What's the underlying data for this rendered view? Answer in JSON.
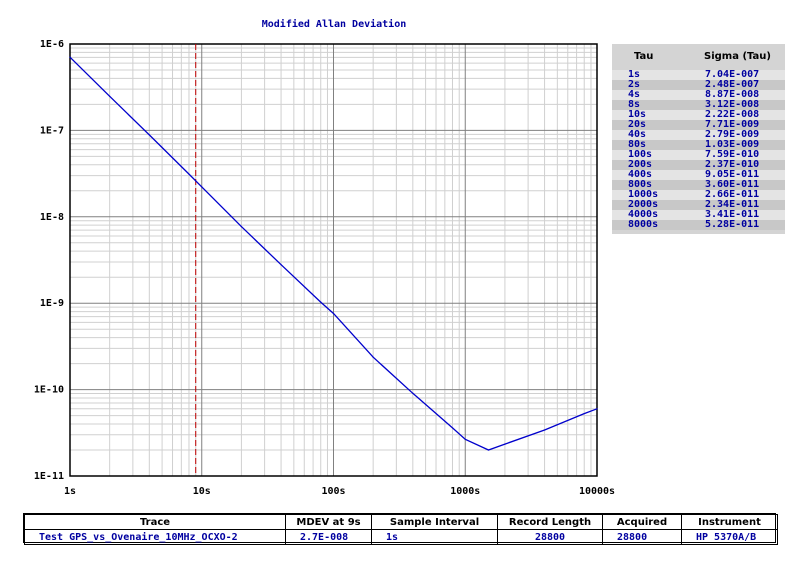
{
  "chart_data": {
    "type": "line",
    "title": "Modified Allan Deviation",
    "xscale": "log",
    "yscale": "log",
    "xlim": [
      1,
      10000
    ],
    "ylim": [
      1e-11,
      1e-06
    ],
    "x_tick_labels": [
      "1s",
      "10s",
      "100s",
      "1000s",
      "10000s"
    ],
    "y_tick_labels": [
      "1E-6",
      "1E-7",
      "1E-8",
      "1E-9",
      "1E-10",
      "1E-11"
    ],
    "grid": true,
    "marker_line": {
      "x": 9,
      "style": "dashed",
      "color": "#c00000"
    },
    "series": [
      {
        "color": "#0000cc",
        "x": [
          1,
          2,
          4,
          8,
          10,
          20,
          40,
          80,
          100,
          200,
          400,
          800,
          1000,
          1500,
          2000,
          4000,
          8000,
          10000
        ],
        "y": [
          7.04e-07,
          2.48e-07,
          8.87e-08,
          3.12e-08,
          2.22e-08,
          7.71e-09,
          2.79e-09,
          1.03e-09,
          7.59e-10,
          2.37e-10,
          9.05e-11,
          3.6e-11,
          2.66e-11,
          2e-11,
          2.34e-11,
          3.41e-11,
          5.28e-11,
          6e-11
        ]
      }
    ]
  },
  "table": {
    "header_tau": "Tau",
    "header_sigma": "Sigma (Tau)",
    "rows": [
      {
        "tau": "1s",
        "sigma": "7.04E-007"
      },
      {
        "tau": "2s",
        "sigma": "2.48E-007"
      },
      {
        "tau": "4s",
        "sigma": "8.87E-008"
      },
      {
        "tau": "8s",
        "sigma": "3.12E-008"
      },
      {
        "tau": "10s",
        "sigma": "2.22E-008"
      },
      {
        "tau": "20s",
        "sigma": "7.71E-009"
      },
      {
        "tau": "40s",
        "sigma": "2.79E-009"
      },
      {
        "tau": "80s",
        "sigma": "1.03E-009"
      },
      {
        "tau": "100s",
        "sigma": "7.59E-010"
      },
      {
        "tau": "200s",
        "sigma": "2.37E-010"
      },
      {
        "tau": "400s",
        "sigma": "9.05E-011"
      },
      {
        "tau": "800s",
        "sigma": "3.60E-011"
      },
      {
        "tau": "1000s",
        "sigma": "2.66E-011"
      },
      {
        "tau": "2000s",
        "sigma": "2.34E-011"
      },
      {
        "tau": "4000s",
        "sigma": "3.41E-011"
      },
      {
        "tau": "8000s",
        "sigma": "5.28E-011"
      }
    ]
  },
  "info": {
    "headers": {
      "trace": "Trace",
      "mdev": "MDEV at 9s",
      "sample_interval": "Sample Interval",
      "record_length": "Record Length",
      "acquired": "Acquired",
      "instrument": "Instrument"
    },
    "values": {
      "trace": "Test GPS_vs_Ovenaire_10MHz_OCXO-2",
      "mdev": "2.7E-008",
      "sample_interval": "1s",
      "record_length": "28800",
      "acquired": "28800",
      "instrument": "HP 5370A/B"
    }
  }
}
